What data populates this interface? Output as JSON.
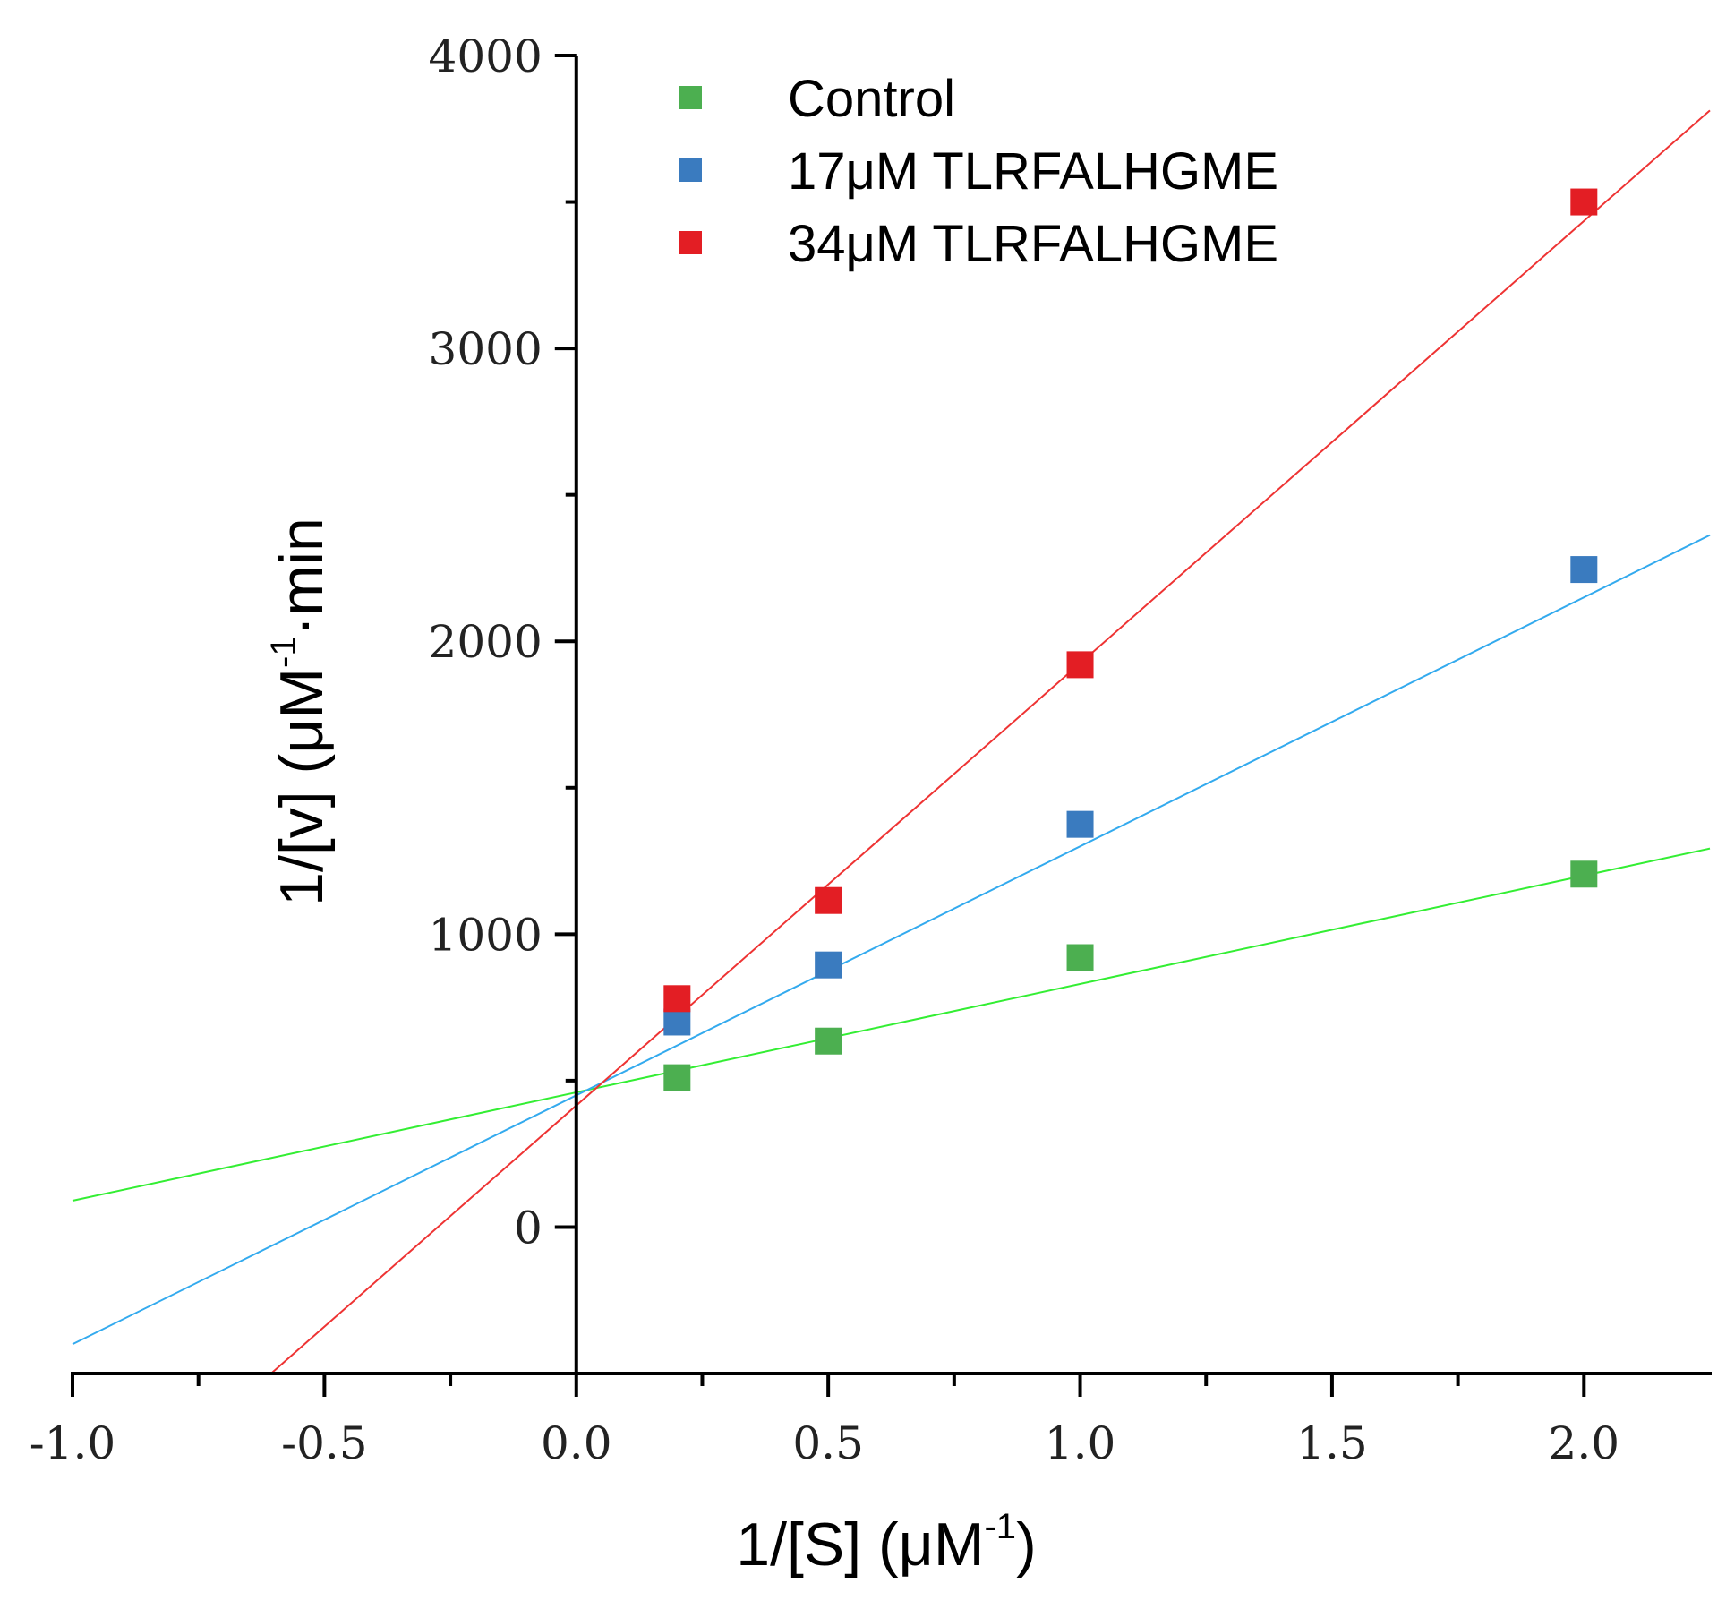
{
  "chart_data": {
    "type": "scatter",
    "title": "",
    "xlabel": {
      "main": "1/[S] (μM",
      "sup": "-1",
      "end": ")"
    },
    "ylabel": {
      "main": "1/[v] (μM",
      "sup": "-1",
      "end": "·min"
    },
    "xlim": [
      -1.0,
      2.25
    ],
    "ylim": [
      -500,
      4000
    ],
    "x_ticks": [
      -1.0,
      -0.5,
      0.0,
      0.5,
      1.0,
      1.5,
      2.0
    ],
    "x_tick_labels": [
      "-1.0",
      "-0.5",
      "0.0",
      "0.5",
      "1.0",
      "1.5",
      "2.0"
    ],
    "x_minor_ticks": [
      -0.75,
      -0.25,
      0.25,
      0.75,
      1.25,
      1.75
    ],
    "y_ticks": [
      0,
      1000,
      2000,
      3000,
      4000
    ],
    "y_tick_labels": [
      "0",
      "1000",
      "2000",
      "3000",
      "4000"
    ],
    "y_minor_ticks": [
      500,
      1500,
      2500,
      3500
    ],
    "grid": false,
    "legend_position": "top-center",
    "series": [
      {
        "name": "Control",
        "marker_color": "#4caf50",
        "line_color": "#33ee33",
        "x": [
          0.2,
          0.5,
          1.0,
          2.0
        ],
        "y": [
          510,
          635,
          920,
          1205
        ],
        "fit": {
          "slope": 370,
          "intercept": 460
        }
      },
      {
        "name": "17μM TLRFALHGME",
        "marker_color": "#3a7bbf",
        "line_color": "#33aaee",
        "x": [
          0.2,
          0.5,
          1.0,
          2.0
        ],
        "y": [
          700,
          895,
          1375,
          2245
        ],
        "fit": {
          "slope": 850,
          "intercept": 450
        }
      },
      {
        "name": "34μM TLRFALHGME",
        "marker_color": "#e31e24",
        "line_color": "#ee3333",
        "x": [
          0.2,
          0.5,
          1.0,
          2.0
        ],
        "y": [
          780,
          1115,
          1920,
          3500
        ],
        "fit": {
          "slope": 1510,
          "intercept": 415
        }
      }
    ]
  }
}
